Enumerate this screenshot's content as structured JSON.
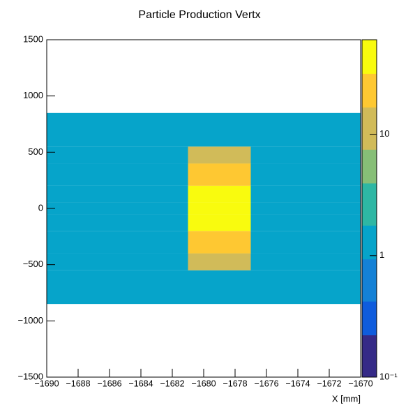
{
  "chart_data": {
    "type": "heatmap",
    "title": "Particle Production Vertx",
    "x_label": "X [mm]",
    "x_bins": [
      -1690,
      -1681,
      -1677,
      -1670
    ],
    "y_bins": [
      -1500,
      -850,
      -550,
      -400,
      -200,
      -50,
      50,
      200,
      400,
      550,
      850,
      1500
    ],
    "z": [
      [
        null,
        null,
        null
      ],
      [
        1.5,
        1.5,
        1.5
      ],
      [
        1.5,
        8,
        1.5
      ],
      [
        1.5,
        15,
        1.5
      ],
      [
        1.5,
        30,
        1.5
      ],
      [
        1.5,
        40,
        1.5
      ],
      [
        1.5,
        30,
        1.5
      ],
      [
        1.5,
        15,
        1.5
      ],
      [
        1.5,
        8,
        1.5
      ],
      [
        1.5,
        1.5,
        1.5
      ],
      [
        null,
        null,
        null
      ]
    ],
    "xlim": [
      -1690,
      -1670
    ],
    "xticks": [
      {
        "value": -1690,
        "label": "−1690"
      },
      {
        "value": -1688,
        "label": "−1688"
      },
      {
        "value": -1686,
        "label": "−1686"
      },
      {
        "value": -1684,
        "label": "−1684"
      },
      {
        "value": -1682,
        "label": "−1682"
      },
      {
        "value": -1680,
        "label": "−1680"
      },
      {
        "value": -1678,
        "label": "−1678"
      },
      {
        "value": -1676,
        "label": "−1676"
      },
      {
        "value": -1674,
        "label": "−1674"
      },
      {
        "value": -1672,
        "label": "−1672"
      },
      {
        "value": -1670,
        "label": "−1670"
      }
    ],
    "ylim": [
      -1500,
      1500
    ],
    "yticks": [
      {
        "value": -1500,
        "label": "−1500"
      },
      {
        "value": -1000,
        "label": "−1000"
      },
      {
        "value": -500,
        "label": "−500"
      },
      0,
      500,
      1000,
      1500
    ],
    "zlim": [
      0.1,
      60
    ],
    "zlog": true,
    "zticks": [
      {
        "value": 0.1,
        "label": "10⁻¹"
      },
      1,
      10
    ],
    "colormap": [
      "#352a87",
      "#0f5cdd",
      "#1481d6",
      "#06a4ca",
      "#2eb7a4",
      "#87bf77",
      "#d1bb59",
      "#fec832",
      "#f9fb0e"
    ]
  }
}
